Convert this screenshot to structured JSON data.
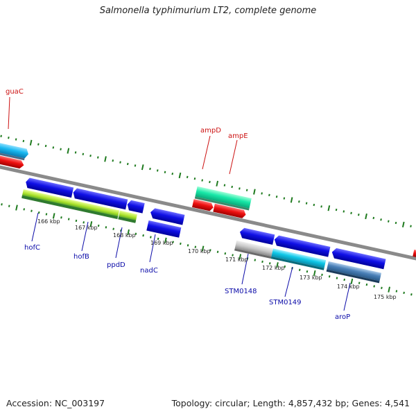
{
  "title": "Salmonella typhimurium LT2, complete genome",
  "footer": {
    "accession": "Accession: NC_003197",
    "topology": "Topology: circular; Length: 4,857,432 bp; Genes: 4,541"
  },
  "colors": {
    "backbone": "#8a8a8a",
    "tick": "#1e7a1e",
    "gene_label_blue": "#0a0aa8",
    "gene_label_red": "#cc1111",
    "kbp_label": "#222222"
  },
  "scale_labels": [
    "166 kbp",
    "167 kbp",
    "168 kbp",
    "169 kbp",
    "170 kbp",
    "171 kbp",
    "172 kbp",
    "173 kbp",
    "174 kbp",
    "175 kbp"
  ],
  "top_labels": [
    "guaC",
    "ampD",
    "ampE"
  ],
  "bottom_labels": [
    "hofC",
    "hofB",
    "ppdD",
    "nadC",
    "STM0148",
    "STM0149",
    "aroP"
  ]
}
